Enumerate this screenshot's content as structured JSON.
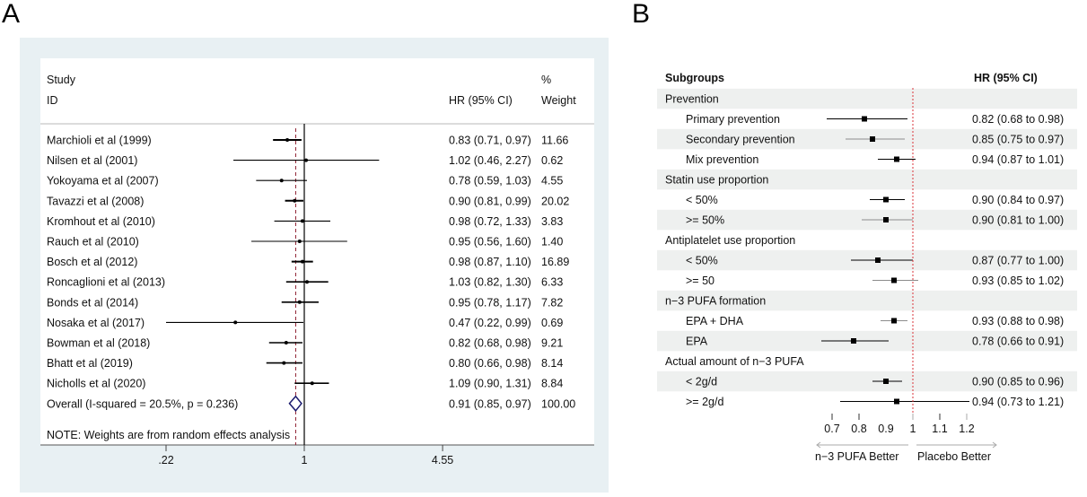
{
  "panels": {
    "a_label": "A",
    "b_label": "B"
  },
  "chart_data": [
    {
      "type": "forest",
      "panel": "A",
      "title": "",
      "header": {
        "study_line1": "Study",
        "study_line2": "ID",
        "hr_label": "HR (95% CI)",
        "weight_line1": "%",
        "weight_line2": "Weight"
      },
      "x_scale": "log",
      "x_ticks": [
        0.22,
        1,
        4.55
      ],
      "x_tick_labels": [
        ".22",
        "1",
        "4.55"
      ],
      "xlim": [
        0.22,
        4.55
      ],
      "reference_line": 1,
      "overall_line": 0.91,
      "studies": [
        {
          "label": "Marchioli et al (1999)",
          "hr": 0.83,
          "lo": 0.71,
          "hi": 0.97,
          "ci_text": "0.83 (0.71, 0.97)",
          "weight": "11.66"
        },
        {
          "label": "Nilsen et al (2001)",
          "hr": 1.02,
          "lo": 0.46,
          "hi": 2.27,
          "ci_text": "1.02 (0.46, 2.27)",
          "weight": "0.62"
        },
        {
          "label": "Yokoyama et al (2007)",
          "hr": 0.78,
          "lo": 0.59,
          "hi": 1.03,
          "ci_text": "0.78 (0.59, 1.03)",
          "weight": "4.55"
        },
        {
          "label": "Tavazzi et al (2008)",
          "hr": 0.9,
          "lo": 0.81,
          "hi": 0.99,
          "ci_text": "0.90 (0.81, 0.99)",
          "weight": "20.02"
        },
        {
          "label": "Kromhout et al (2010)",
          "hr": 0.98,
          "lo": 0.72,
          "hi": 1.33,
          "ci_text": "0.98 (0.72, 1.33)",
          "weight": "3.83"
        },
        {
          "label": "Rauch et al (2010)",
          "hr": 0.95,
          "lo": 0.56,
          "hi": 1.6,
          "ci_text": "0.95 (0.56, 1.60)",
          "weight": "1.40"
        },
        {
          "label": "Bosch et al (2012)",
          "hr": 0.98,
          "lo": 0.87,
          "hi": 1.1,
          "ci_text": "0.98 (0.87, 1.10)",
          "weight": "16.89"
        },
        {
          "label": "Roncaglioni et al (2013)",
          "hr": 1.03,
          "lo": 0.82,
          "hi": 1.3,
          "ci_text": "1.03 (0.82, 1.30)",
          "weight": "6.33"
        },
        {
          "label": "Bonds et al (2014)",
          "hr": 0.95,
          "lo": 0.78,
          "hi": 1.17,
          "ci_text": "0.95 (0.78, 1.17)",
          "weight": "7.82"
        },
        {
          "label": "Nosaka et al (2017)",
          "hr": 0.47,
          "lo": 0.22,
          "hi": 0.99,
          "ci_text": "0.47 (0.22, 0.99)",
          "weight": "0.69"
        },
        {
          "label": "Bowman et al (2018)",
          "hr": 0.82,
          "lo": 0.68,
          "hi": 0.98,
          "ci_text": "0.82 (0.68, 0.98)",
          "weight": "9.21"
        },
        {
          "label": "Bhatt et al (2019)",
          "hr": 0.8,
          "lo": 0.66,
          "hi": 0.98,
          "ci_text": "0.80 (0.66, 0.98)",
          "weight": "8.14"
        },
        {
          "label": "Nicholls et al (2020)",
          "hr": 1.09,
          "lo": 0.9,
          "hi": 1.31,
          "ci_text": "1.09 (0.90, 1.31)",
          "weight": "8.84"
        }
      ],
      "overall": {
        "label": "Overall  (I-squared = 20.5%, p = 0.236)",
        "hr": 0.91,
        "lo": 0.85,
        "hi": 0.97,
        "ci_text": "0.91 (0.85, 0.97)",
        "weight": "100.00"
      },
      "note": "NOTE: Weights are from random effects analysis",
      "colors": {
        "outer_bg": "#e8f0f3",
        "diamond": "#1a1a6e",
        "overall_line": "#8b1a2b"
      }
    },
    {
      "type": "forest",
      "panel": "B",
      "header": {
        "subgroups": "Subgroups",
        "hr_label": "HR (95% CI)"
      },
      "x_scale": "linear",
      "x_ticks": [
        0.7,
        0.8,
        0.9,
        1,
        1.1,
        1.2
      ],
      "x_tick_labels": [
        "0.7",
        "0.8",
        "0.9",
        "1",
        "1.1",
        "1.2"
      ],
      "xlim": [
        0.7,
        1.2
      ],
      "reference_line": 1,
      "direction_labels": {
        "left": "n−3 PUFA Better",
        "right": "Placebo Better"
      },
      "rows": [
        {
          "kind": "group",
          "label": "Prevention"
        },
        {
          "kind": "item",
          "label": "Primary prevention",
          "hr": 0.82,
          "lo": 0.68,
          "hi": 0.98,
          "ci_text": "0.82 (0.68 to 0.98)",
          "line": "dark"
        },
        {
          "kind": "item",
          "label": "Secondary prevention",
          "hr": 0.85,
          "lo": 0.75,
          "hi": 0.97,
          "ci_text": "0.85 (0.75 to 0.97)",
          "line": "grey"
        },
        {
          "kind": "item",
          "label": "Mix prevention",
          "hr": 0.94,
          "lo": 0.87,
          "hi": 1.01,
          "ci_text": "0.94 (0.87 to 1.01)",
          "line": "dark"
        },
        {
          "kind": "group",
          "label": "Statin use proportion"
        },
        {
          "kind": "item",
          "label": "< 50%",
          "hr": 0.9,
          "lo": 0.84,
          "hi": 0.97,
          "ci_text": "0.90 (0.84 to 0.97)",
          "line": "dark"
        },
        {
          "kind": "item",
          "label": ">= 50%",
          "hr": 0.9,
          "lo": 0.81,
          "hi": 1.0,
          "ci_text": "0.90 (0.81 to 1.00)",
          "line": "grey"
        },
        {
          "kind": "group",
          "label": "Antiplatelet use proportion"
        },
        {
          "kind": "item",
          "label": "< 50%",
          "hr": 0.87,
          "lo": 0.77,
          "hi": 1.0,
          "ci_text": "0.87 (0.77 to 1.00)",
          "line": "dark"
        },
        {
          "kind": "item",
          "label": ">= 50",
          "hr": 0.93,
          "lo": 0.85,
          "hi": 1.02,
          "ci_text": "0.93 (0.85 to 1.02)",
          "line": "grey"
        },
        {
          "kind": "group",
          "label": "n−3 PUFA formation"
        },
        {
          "kind": "item",
          "label": "EPA + DHA",
          "hr": 0.93,
          "lo": 0.88,
          "hi": 0.98,
          "ci_text": "0.93 (0.88 to 0.98)",
          "line": "grey"
        },
        {
          "kind": "item",
          "label": "EPA",
          "hr": 0.78,
          "lo": 0.66,
          "hi": 0.91,
          "ci_text": "0.78 (0.66 to 0.91)",
          "line": "dark"
        },
        {
          "kind": "group",
          "label": "Actual amount of n−3 PUFA"
        },
        {
          "kind": "item",
          "label": "< 2g/d",
          "hr": 0.9,
          "lo": 0.85,
          "hi": 0.96,
          "ci_text": "0.90 (0.85 to 0.96)",
          "line": "dark"
        },
        {
          "kind": "item",
          "label": ">= 2g/d",
          "hr": 0.94,
          "lo": 0.73,
          "hi": 1.21,
          "ci_text": "0.94 (0.73 to 1.21)",
          "line": "dark"
        }
      ],
      "colors": {
        "band": "#eef0ef",
        "ref_line": "#d9333a",
        "grey_line": "#8c8c8c"
      }
    }
  ]
}
